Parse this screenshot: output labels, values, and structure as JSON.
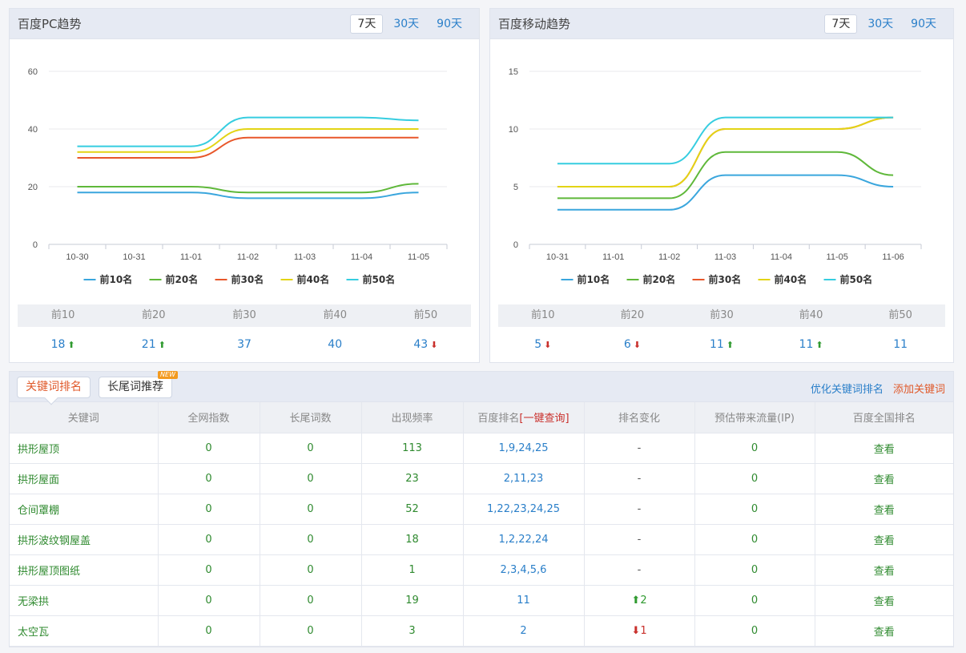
{
  "pc_panel": {
    "title": "百度PC趋势",
    "range_tabs": [
      "7天",
      "30天",
      "90天"
    ],
    "active_tab": 0
  },
  "mobile_panel": {
    "title": "百度移动趋势",
    "range_tabs": [
      "7天",
      "30天",
      "90天"
    ],
    "active_tab": 0
  },
  "chart_data": [
    {
      "type": "line",
      "x": [
        "10-30",
        "10-31",
        "11-01",
        "11-02",
        "11-03",
        "11-04",
        "11-05"
      ],
      "ylim": [
        0,
        60
      ],
      "yticks": [
        0,
        20,
        40,
        60
      ],
      "grid": true,
      "legend_position": "bottom",
      "series": [
        {
          "name": "前10名",
          "color": "#3aa6dd",
          "values": [
            18,
            18,
            18,
            16,
            16,
            16,
            18
          ]
        },
        {
          "name": "前20名",
          "color": "#5fb83a",
          "values": [
            20,
            20,
            20,
            18,
            18,
            18,
            21
          ]
        },
        {
          "name": "前30名",
          "color": "#e8572a",
          "values": [
            30,
            30,
            30,
            37,
            37,
            37,
            37
          ]
        },
        {
          "name": "前40名",
          "color": "#e3d415",
          "values": [
            32,
            32,
            32,
            40,
            40,
            40,
            40
          ]
        },
        {
          "name": "前50名",
          "color": "#36cde0",
          "values": [
            34,
            34,
            34,
            44,
            44,
            44,
            43
          ]
        }
      ]
    },
    {
      "type": "line",
      "x": [
        "10-31",
        "11-01",
        "11-02",
        "11-03",
        "11-04",
        "11-05",
        "11-06"
      ],
      "ylim": [
        0,
        15
      ],
      "yticks": [
        0,
        5,
        10,
        15
      ],
      "grid": true,
      "legend_position": "bottom",
      "series": [
        {
          "name": "前10名",
          "color": "#3aa6dd",
          "values": [
            3,
            3,
            3,
            6,
            6,
            6,
            5
          ]
        },
        {
          "name": "前20名",
          "color": "#5fb83a",
          "values": [
            4,
            4,
            4,
            8,
            8,
            8,
            6
          ]
        },
        {
          "name": "前30名",
          "color": "#e8572a",
          "values": [
            5,
            5,
            5,
            10,
            10,
            10,
            11
          ]
        },
        {
          "name": "前40名",
          "color": "#e3d415",
          "values": [
            5,
            5,
            5,
            10,
            10,
            10,
            11
          ]
        },
        {
          "name": "前50名",
          "color": "#36cde0",
          "values": [
            7,
            7,
            7,
            11,
            11,
            11,
            11
          ]
        }
      ]
    }
  ],
  "pc_stats": [
    {
      "label": "前10",
      "value": "18",
      "trend": "up"
    },
    {
      "label": "前20",
      "value": "21",
      "trend": "up"
    },
    {
      "label": "前30",
      "value": "37",
      "trend": ""
    },
    {
      "label": "前40",
      "value": "40",
      "trend": ""
    },
    {
      "label": "前50",
      "value": "43",
      "trend": "down"
    }
  ],
  "mobile_stats": [
    {
      "label": "前10",
      "value": "5",
      "trend": "down"
    },
    {
      "label": "前20",
      "value": "6",
      "trend": "down"
    },
    {
      "label": "前30",
      "value": "11",
      "trend": "up"
    },
    {
      "label": "前40",
      "value": "11",
      "trend": "up"
    },
    {
      "label": "前50",
      "value": "11",
      "trend": ""
    }
  ],
  "keywords": {
    "tab_rank": "关键词排名",
    "tab_longtail": "长尾词推荐",
    "new_badge": "NEW",
    "link_optimize": "优化关键词排名",
    "link_add": "添加关键词",
    "columns": [
      "关键词",
      "全网指数",
      "长尾词数",
      "出现频率",
      "百度排名",
      "排名变化",
      "预估带来流量(IP)",
      "百度全国排名"
    ],
    "query_link": "[一键查询]",
    "view_label": "查看",
    "rows": [
      {
        "kw": "拱形屋顶",
        "index": "0",
        "longtail": "0",
        "freq": "113",
        "rank": "1,9,24,25",
        "change": "-",
        "dir": "",
        "traffic": "0"
      },
      {
        "kw": "拱形屋面",
        "index": "0",
        "longtail": "0",
        "freq": "23",
        "rank": "2,11,23",
        "change": "-",
        "dir": "",
        "traffic": "0"
      },
      {
        "kw": "仓间罩棚",
        "index": "0",
        "longtail": "0",
        "freq": "52",
        "rank": "1,22,23,24,25",
        "change": "-",
        "dir": "",
        "traffic": "0"
      },
      {
        "kw": "拱形波纹钢屋盖",
        "index": "0",
        "longtail": "0",
        "freq": "18",
        "rank": "1,2,22,24",
        "change": "-",
        "dir": "",
        "traffic": "0"
      },
      {
        "kw": "拱形屋顶图纸",
        "index": "0",
        "longtail": "0",
        "freq": "1",
        "rank": "2,3,4,5,6",
        "change": "-",
        "dir": "",
        "traffic": "0"
      },
      {
        "kw": "无梁拱",
        "index": "0",
        "longtail": "0",
        "freq": "19",
        "rank": "11",
        "change": "2",
        "dir": "up",
        "traffic": "0"
      },
      {
        "kw": "太空瓦",
        "index": "0",
        "longtail": "0",
        "freq": "3",
        "rank": "2",
        "change": "1",
        "dir": "down",
        "traffic": "0"
      }
    ]
  }
}
